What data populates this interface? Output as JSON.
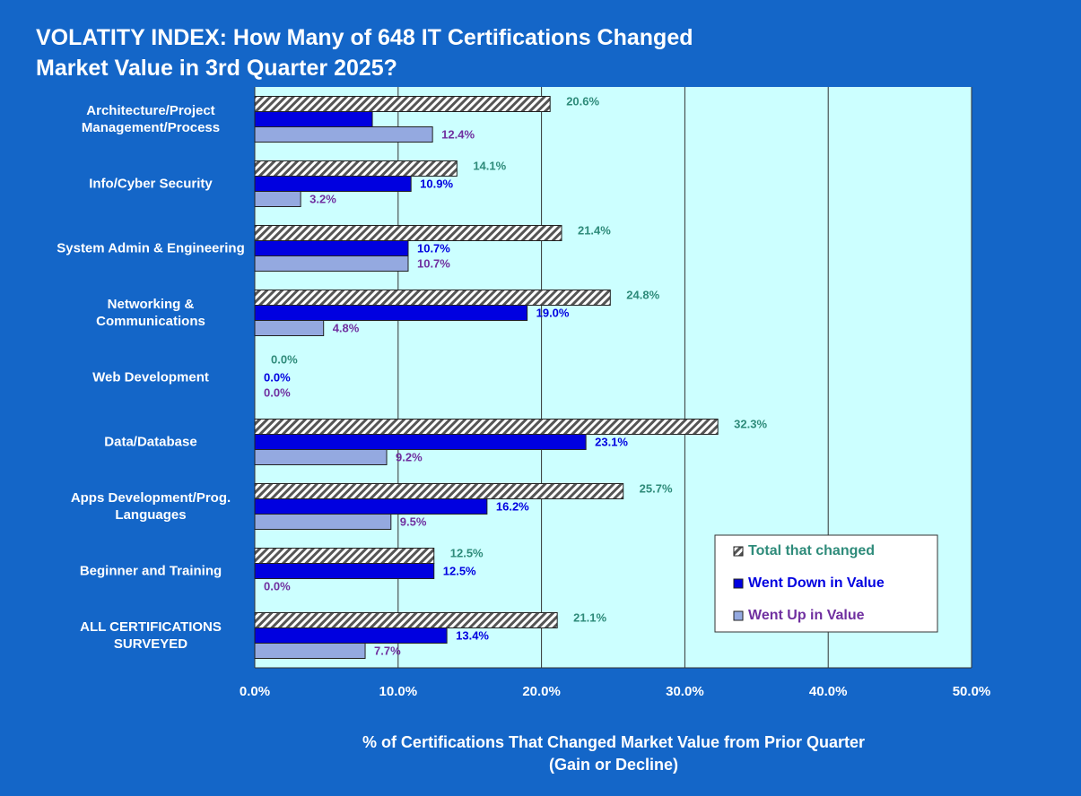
{
  "chart_data": {
    "type": "bar",
    "orientation": "horizontal",
    "title": [
      "VOLATITY INDEX: How Many of 648 IT Certifications Changed",
      "Market Value in 3rd Quarter 2025?"
    ],
    "xlabel": [
      "% of Certifications That Changed Market Value from Prior Quarter",
      "(Gain or Decline)"
    ],
    "categories": [
      "Architecture/Project Management/Process",
      "Info/Cyber Security",
      "System Admin & Engineering",
      "Networking & Communications",
      "Web Development",
      "Data/Database",
      "Apps Development/Prog. Languages",
      "Beginner and Training",
      "ALL CERTIFICATIONS SURVEYED"
    ],
    "series": [
      {
        "name": "Total that changed",
        "color": "#2e8b7a",
        "pattern": "hatch",
        "values": [
          20.6,
          14.1,
          21.4,
          24.8,
          0.0,
          32.3,
          25.7,
          12.5,
          21.1
        ],
        "value_labels": [
          "20.6%",
          "14.1%",
          "21.4%",
          "24.8%",
          "0.0%",
          "32.3%",
          "25.7%",
          "12.5%",
          "21.1%"
        ]
      },
      {
        "name": "Went Down in Value",
        "color": "#0000e0",
        "values": [
          8.2,
          10.9,
          10.7,
          19.0,
          0.0,
          23.1,
          16.2,
          12.5,
          13.4
        ],
        "value_labels": [
          null,
          "10.9%",
          "10.7%",
          "19.0%",
          "0.0%",
          "23.1%",
          "16.2%",
          "12.5%",
          "13.4%"
        ]
      },
      {
        "name": "Went Up in Value",
        "color": "#94a9e0",
        "values": [
          12.4,
          3.2,
          10.7,
          4.8,
          0.0,
          9.2,
          9.5,
          0.0,
          7.7
        ],
        "value_labels": [
          "12.4%",
          "3.2%",
          "10.7%",
          "4.8%",
          "0.0%",
          "9.2%",
          "9.5%",
          "0.0%",
          "7.7%"
        ]
      }
    ],
    "xlim": [
      0,
      50
    ],
    "xticks": [
      {
        "value": 0,
        "label": "0.0%"
      },
      {
        "value": 10,
        "label": "10.0%"
      },
      {
        "value": 20,
        "label": "20.0%"
      },
      {
        "value": 30,
        "label": "30.0%"
      },
      {
        "value": 40,
        "label": "40.0%"
      },
      {
        "value": 50,
        "label": "50.0%"
      }
    ],
    "grid": true,
    "legend": "lower right"
  }
}
